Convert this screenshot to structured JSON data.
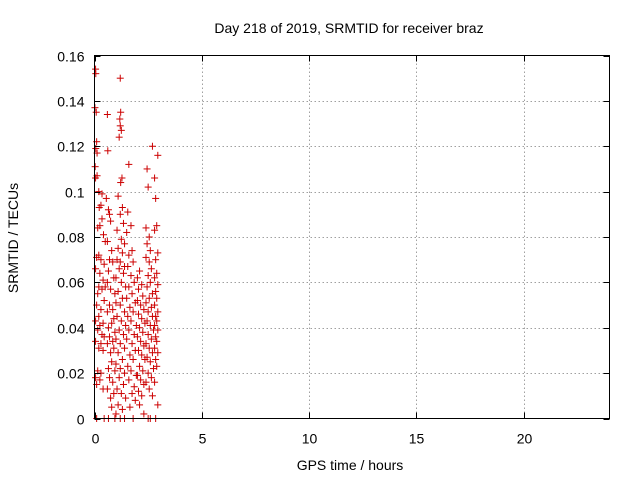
{
  "chart_data": {
    "type": "scatter",
    "title": "Day 218 of 2019, SRMTID for receiver braz",
    "xlabel": "GPS time / hours",
    "ylabel": "SRMTID / TECUs",
    "xlim": [
      0,
      24
    ],
    "ylim": [
      0,
      0.16
    ],
    "x_ticks": [
      0,
      5,
      10,
      15,
      20
    ],
    "x_tick_labels": [
      "0",
      "5",
      "10",
      "15",
      "20"
    ],
    "y_ticks": [
      0,
      0.02,
      0.04,
      0.06,
      0.08,
      0.1,
      0.12,
      0.14,
      0.16
    ],
    "y_tick_labels": [
      "0",
      "0.02",
      "0.04",
      "0.06",
      "0.08",
      "0.1",
      "0.12",
      "0.14",
      "0.16"
    ],
    "grid": true,
    "marker": "+",
    "marker_color": "#cc0000",
    "series": [
      {
        "name": "SRMTID",
        "points": [
          [
            0.05,
            0.154
          ],
          [
            0.06,
            0.152
          ],
          [
            0.02,
            0.137
          ],
          [
            0.08,
            0.135
          ],
          [
            0.1,
            0.122
          ],
          [
            0.06,
            0.119
          ],
          [
            0.12,
            0.117
          ],
          [
            0.03,
            0.111
          ],
          [
            0.12,
            0.107
          ],
          [
            0.05,
            0.106
          ],
          [
            0.2,
            0.1
          ],
          [
            0.35,
            0.099
          ],
          [
            0.3,
            0.094
          ],
          [
            0.22,
            0.093
          ],
          [
            0.35,
            0.088
          ],
          [
            0.25,
            0.085
          ],
          [
            0.15,
            0.084
          ],
          [
            0.42,
            0.081
          ],
          [
            0.5,
            0.078
          ],
          [
            0.2,
            0.072
          ],
          [
            0.1,
            0.071
          ],
          [
            0.3,
            0.07
          ],
          [
            0.45,
            0.068
          ],
          [
            0.05,
            0.066
          ],
          [
            0.25,
            0.064
          ],
          [
            0.4,
            0.061
          ],
          [
            0.5,
            0.058
          ],
          [
            0.2,
            0.058
          ],
          [
            0.35,
            0.057
          ],
          [
            0.15,
            0.055
          ],
          [
            0.45,
            0.052
          ],
          [
            0.1,
            0.05
          ],
          [
            0.3,
            0.048
          ],
          [
            0.2,
            0.045
          ],
          [
            0.05,
            0.043
          ],
          [
            0.4,
            0.042
          ],
          [
            0.25,
            0.041
          ],
          [
            0.15,
            0.039
          ],
          [
            0.35,
            0.037
          ],
          [
            0.45,
            0.036
          ],
          [
            0.05,
            0.034
          ],
          [
            0.3,
            0.033
          ],
          [
            0.2,
            0.031
          ],
          [
            0.4,
            0.03
          ],
          [
            0.15,
            0.021
          ],
          [
            0.3,
            0.02
          ],
          [
            0.05,
            0.018
          ],
          [
            0.25,
            0.017
          ],
          [
            0.1,
            0.015
          ],
          [
            0.4,
            0.013
          ],
          [
            0.1,
            0
          ],
          [
            0.45,
            0
          ],
          [
            0.6,
            0.134
          ],
          [
            0.62,
            0.118
          ],
          [
            0.55,
            0.097
          ],
          [
            0.65,
            0.092
          ],
          [
            0.7,
            0.09
          ],
          [
            0.75,
            0.087
          ],
          [
            0.6,
            0.078
          ],
          [
            0.8,
            0.074
          ],
          [
            0.7,
            0.07
          ],
          [
            0.85,
            0.069
          ],
          [
            0.65,
            0.065
          ],
          [
            0.9,
            0.062
          ],
          [
            0.6,
            0.06
          ],
          [
            0.75,
            0.057
          ],
          [
            0.95,
            0.055
          ],
          [
            0.7,
            0.05
          ],
          [
            0.85,
            0.048
          ],
          [
            0.6,
            0.047
          ],
          [
            0.9,
            0.044
          ],
          [
            0.8,
            0.042
          ],
          [
            0.65,
            0.04
          ],
          [
            0.95,
            0.038
          ],
          [
            0.7,
            0.036
          ],
          [
            0.85,
            0.034
          ],
          [
            0.6,
            0.033
          ],
          [
            0.9,
            0.031
          ],
          [
            0.75,
            0.029
          ],
          [
            0.8,
            0.025
          ],
          [
            0.65,
            0.022
          ],
          [
            0.95,
            0.021
          ],
          [
            0.7,
            0.018
          ],
          [
            0.85,
            0.016
          ],
          [
            0.6,
            0.013
          ],
          [
            0.9,
            0.011
          ],
          [
            0.75,
            0.009
          ],
          [
            0.8,
            0.005
          ],
          [
            0.65,
            0
          ],
          [
            0.95,
            0
          ],
          [
            1.2,
            0.15
          ],
          [
            1.22,
            0.135
          ],
          [
            1.18,
            0.132
          ],
          [
            1.2,
            0.129
          ],
          [
            1.25,
            0.127
          ],
          [
            1.15,
            0.124
          ],
          [
            1.28,
            0.106
          ],
          [
            1.22,
            0.104
          ],
          [
            1.1,
            0.098
          ],
          [
            1.3,
            0.093
          ],
          [
            1.2,
            0.09
          ],
          [
            1.35,
            0.086
          ],
          [
            1.05,
            0.083
          ],
          [
            1.25,
            0.079
          ],
          [
            1.4,
            0.077
          ],
          [
            1.1,
            0.075
          ],
          [
            1.3,
            0.073
          ],
          [
            1.05,
            0.07
          ],
          [
            1.2,
            0.069
          ],
          [
            1.4,
            0.067
          ],
          [
            1.15,
            0.066
          ],
          [
            1.35,
            0.064
          ],
          [
            1.0,
            0.062
          ],
          [
            1.25,
            0.06
          ],
          [
            1.45,
            0.058
          ],
          [
            1.1,
            0.056
          ],
          [
            1.3,
            0.053
          ],
          [
            1.0,
            0.051
          ],
          [
            1.2,
            0.05
          ],
          [
            1.4,
            0.047
          ],
          [
            1.05,
            0.045
          ],
          [
            1.25,
            0.043
          ],
          [
            1.45,
            0.041
          ],
          [
            1.15,
            0.039
          ],
          [
            1.35,
            0.037
          ],
          [
            1.0,
            0.035
          ],
          [
            1.2,
            0.033
          ],
          [
            1.4,
            0.031
          ],
          [
            1.1,
            0.029
          ],
          [
            1.3,
            0.026
          ],
          [
            1.0,
            0.024
          ],
          [
            1.2,
            0.022
          ],
          [
            1.4,
            0.02
          ],
          [
            1.15,
            0.018
          ],
          [
            1.35,
            0.015
          ],
          [
            1.05,
            0.013
          ],
          [
            1.25,
            0.011
          ],
          [
            1.45,
            0.009
          ],
          [
            1.1,
            0.006
          ],
          [
            1.3,
            0.004
          ],
          [
            1.0,
            0.002
          ],
          [
            1.2,
            0
          ],
          [
            1.4,
            0
          ],
          [
            1.6,
            0.112
          ],
          [
            1.55,
            0.091
          ],
          [
            1.7,
            0.085
          ],
          [
            1.5,
            0.082
          ],
          [
            1.75,
            0.074
          ],
          [
            1.6,
            0.072
          ],
          [
            1.8,
            0.069
          ],
          [
            1.55,
            0.067
          ],
          [
            1.7,
            0.063
          ],
          [
            1.85,
            0.06
          ],
          [
            1.6,
            0.058
          ],
          [
            1.75,
            0.055
          ],
          [
            1.5,
            0.053
          ],
          [
            1.9,
            0.051
          ],
          [
            1.65,
            0.049
          ],
          [
            1.8,
            0.047
          ],
          [
            1.55,
            0.045
          ],
          [
            1.7,
            0.043
          ],
          [
            1.95,
            0.041
          ],
          [
            1.6,
            0.039
          ],
          [
            1.85,
            0.037
          ],
          [
            1.5,
            0.035
          ],
          [
            1.75,
            0.033
          ],
          [
            1.9,
            0.03
          ],
          [
            1.65,
            0.028
          ],
          [
            1.8,
            0.026
          ],
          [
            1.55,
            0.023
          ],
          [
            1.7,
            0.021
          ],
          [
            1.95,
            0.019
          ],
          [
            1.6,
            0.017
          ],
          [
            1.85,
            0.014
          ],
          [
            1.75,
            0.011
          ],
          [
            1.9,
            0.008
          ],
          [
            1.65,
            0.005
          ],
          [
            1.8,
            0
          ],
          [
            2.1,
            0.065
          ],
          [
            2.0,
            0.062
          ],
          [
            2.2,
            0.059
          ],
          [
            2.05,
            0.057
          ],
          [
            2.25,
            0.054
          ],
          [
            2.0,
            0.052
          ],
          [
            2.15,
            0.05
          ],
          [
            2.3,
            0.048
          ],
          [
            2.05,
            0.046
          ],
          [
            2.2,
            0.044
          ],
          [
            2.35,
            0.042
          ],
          [
            2.1,
            0.04
          ],
          [
            2.25,
            0.038
          ],
          [
            2.0,
            0.036
          ],
          [
            2.15,
            0.034
          ],
          [
            2.3,
            0.032
          ],
          [
            2.05,
            0.03
          ],
          [
            2.2,
            0.028
          ],
          [
            2.35,
            0.026
          ],
          [
            2.1,
            0.023
          ],
          [
            2.25,
            0.021
          ],
          [
            2.0,
            0.019
          ],
          [
            2.15,
            0.017
          ],
          [
            2.3,
            0.015
          ],
          [
            2.05,
            0.012
          ],
          [
            2.2,
            0.01
          ],
          [
            2.1,
            0.006
          ],
          [
            2.3,
            0.002
          ],
          [
            2.45,
            0.11
          ],
          [
            2.5,
            0.102
          ],
          [
            2.4,
            0.084
          ],
          [
            2.55,
            0.08
          ],
          [
            2.45,
            0.077
          ],
          [
            2.6,
            0.074
          ],
          [
            2.4,
            0.071
          ],
          [
            2.55,
            0.069
          ],
          [
            2.65,
            0.066
          ],
          [
            2.5,
            0.063
          ],
          [
            2.6,
            0.06
          ],
          [
            2.45,
            0.058
          ],
          [
            2.7,
            0.055
          ],
          [
            2.55,
            0.053
          ],
          [
            2.4,
            0.051
          ],
          [
            2.65,
            0.049
          ],
          [
            2.5,
            0.047
          ],
          [
            2.7,
            0.045
          ],
          [
            2.45,
            0.043
          ],
          [
            2.6,
            0.041
          ],
          [
            2.75,
            0.039
          ],
          [
            2.5,
            0.037
          ],
          [
            2.65,
            0.035
          ],
          [
            2.4,
            0.033
          ],
          [
            2.55,
            0.031
          ],
          [
            2.7,
            0.029
          ],
          [
            2.45,
            0.027
          ],
          [
            2.6,
            0.025
          ],
          [
            2.75,
            0.022
          ],
          [
            2.5,
            0.02
          ],
          [
            2.65,
            0.018
          ],
          [
            2.4,
            0.016
          ],
          [
            2.55,
            0.013
          ],
          [
            2.7,
            0.01
          ],
          [
            2.5,
            0
          ],
          [
            2.6,
            0
          ],
          [
            2.7,
            0.12
          ],
          [
            2.95,
            0.116
          ],
          [
            2.8,
            0.106
          ],
          [
            2.85,
            0.097
          ],
          [
            2.9,
            0.085
          ],
          [
            2.8,
            0.083
          ],
          [
            2.95,
            0.073
          ],
          [
            2.85,
            0.07
          ],
          [
            2.9,
            0.064
          ],
          [
            2.8,
            0.062
          ],
          [
            2.95,
            0.059
          ],
          [
            2.85,
            0.056
          ],
          [
            2.9,
            0.053
          ],
          [
            2.8,
            0.05
          ],
          [
            2.95,
            0.047
          ],
          [
            2.85,
            0.045
          ],
          [
            2.9,
            0.043
          ],
          [
            2.8,
            0.041
          ],
          [
            2.95,
            0.039
          ],
          [
            2.85,
            0.036
          ],
          [
            2.9,
            0.034
          ],
          [
            2.8,
            0.031
          ],
          [
            2.95,
            0.029
          ],
          [
            2.85,
            0.026
          ],
          [
            2.9,
            0.023
          ],
          [
            2.8,
            0.016
          ],
          [
            2.95,
            0.006
          ],
          [
            2.85,
            0
          ]
        ]
      }
    ]
  }
}
